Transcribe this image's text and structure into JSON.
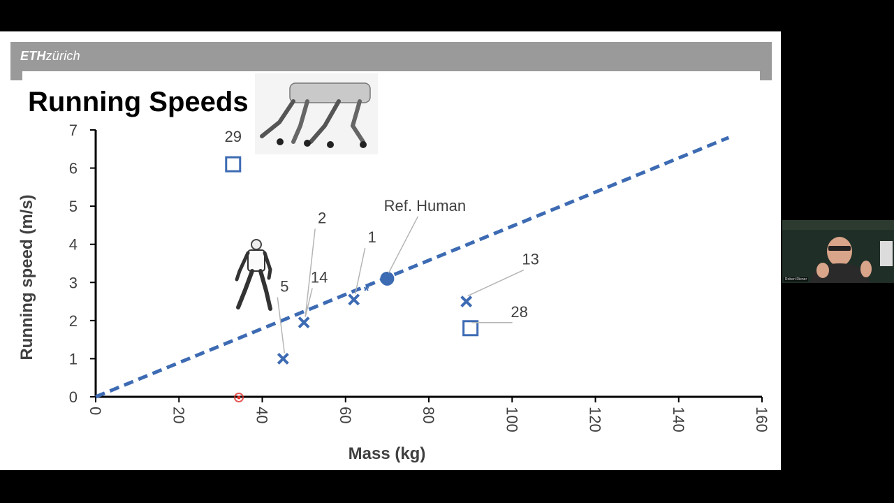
{
  "header": {
    "logo_eth": "ETH",
    "logo_zurich": "zürich"
  },
  "slide": {
    "title": "Running Speeds"
  },
  "video": {
    "participant_name": "Robert Riener"
  },
  "colors": {
    "series": "#3d6bb3",
    "axis": "#000000",
    "label": "#404040",
    "header": "#9a9a9a",
    "pointer": "#e0302a"
  },
  "chart_data": {
    "type": "scatter",
    "title": "",
    "xlabel": "Mass (kg)",
    "ylabel": "Running speed (m/s)",
    "xlim": [
      0,
      160
    ],
    "ylim": [
      0,
      7
    ],
    "xticks": [
      0,
      20,
      40,
      60,
      80,
      100,
      120,
      140,
      160
    ],
    "yticks": [
      0,
      1,
      2,
      3,
      4,
      5,
      6,
      7
    ],
    "grid": false,
    "trendline": {
      "style": "dashed",
      "x": [
        0,
        152
      ],
      "y": [
        0,
        6.8
      ]
    },
    "points": [
      {
        "label": "29",
        "x": 33,
        "y": 6.1,
        "marker": "square"
      },
      {
        "label": "5",
        "x": 45,
        "y": 1.0,
        "marker": "x"
      },
      {
        "label": "2",
        "x": 50,
        "y": 1.95,
        "marker": "x"
      },
      {
        "label": "14",
        "x": 50,
        "y": 1.95,
        "marker": "x"
      },
      {
        "label": "1",
        "x": 62,
        "y": 2.55,
        "marker": "x",
        "asterisk": "*"
      },
      {
        "label": "Ref. Human",
        "x": 70,
        "y": 3.1,
        "marker": "circle"
      },
      {
        "label": "13",
        "x": 89,
        "y": 2.5,
        "marker": "x"
      },
      {
        "label": "28",
        "x": 90,
        "y": 1.8,
        "marker": "square"
      }
    ]
  }
}
